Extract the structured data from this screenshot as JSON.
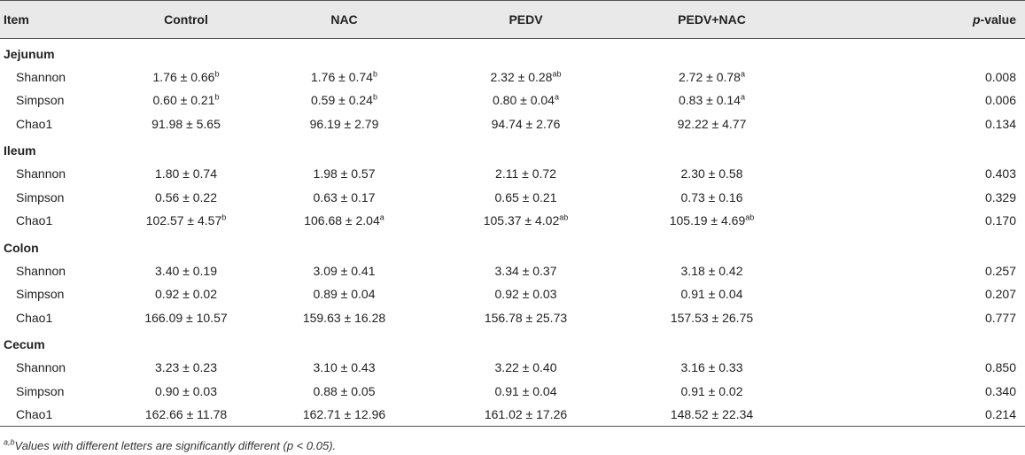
{
  "headers": {
    "item": "Item",
    "control": "Control",
    "nac": "NAC",
    "pedv": "PEDV",
    "pedv_nac": "PEDV+NAC",
    "p_prefix": "p",
    "p_suffix": "-value"
  },
  "sections": [
    {
      "name": "Jejunum",
      "rows": [
        {
          "item": "Shannon",
          "cells": [
            {
              "v": "1.76 ± 0.66",
              "s": "b"
            },
            {
              "v": "1.76 ± 0.74",
              "s": "b"
            },
            {
              "v": "2.32 ± 0.28",
              "s": "ab"
            },
            {
              "v": "2.72 ± 0.78",
              "s": "a"
            }
          ],
          "p": "0.008"
        },
        {
          "item": "Simpson",
          "cells": [
            {
              "v": "0.60 ± 0.21",
              "s": "b"
            },
            {
              "v": "0.59 ± 0.24",
              "s": "b"
            },
            {
              "v": "0.80 ± 0.04",
              "s": "a"
            },
            {
              "v": "0.83 ± 0.14",
              "s": "a"
            }
          ],
          "p": "0.006"
        },
        {
          "item": "Chao1",
          "cells": [
            {
              "v": "91.98 ± 5.65",
              "s": ""
            },
            {
              "v": "96.19 ± 2.79",
              "s": ""
            },
            {
              "v": "94.74 ± 2.76",
              "s": ""
            },
            {
              "v": "92.22 ± 4.77",
              "s": ""
            }
          ],
          "p": "0.134"
        }
      ]
    },
    {
      "name": "Ileum",
      "rows": [
        {
          "item": "Shannon",
          "cells": [
            {
              "v": "1.80 ± 0.74",
              "s": ""
            },
            {
              "v": "1.98 ± 0.57",
              "s": ""
            },
            {
              "v": "2.11 ± 0.72",
              "s": ""
            },
            {
              "v": "2.30 ± 0.58",
              "s": ""
            }
          ],
          "p": "0.403"
        },
        {
          "item": "Simpson",
          "cells": [
            {
              "v": "0.56 ± 0.22",
              "s": ""
            },
            {
              "v": "0.63 ± 0.17",
              "s": ""
            },
            {
              "v": "0.65 ± 0.21",
              "s": ""
            },
            {
              "v": "0.73 ± 0.16",
              "s": ""
            }
          ],
          "p": "0.329"
        },
        {
          "item": "Chao1",
          "cells": [
            {
              "v": "102.57 ± 4.57",
              "s": "b"
            },
            {
              "v": "106.68 ± 2.04",
              "s": "a"
            },
            {
              "v": "105.37 ± 4.02",
              "s": "ab"
            },
            {
              "v": "105.19 ± 4.69",
              "s": "ab"
            }
          ],
          "p": "0.170"
        }
      ]
    },
    {
      "name": "Colon",
      "rows": [
        {
          "item": "Shannon",
          "cells": [
            {
              "v": "3.40 ± 0.19",
              "s": ""
            },
            {
              "v": "3.09 ± 0.41",
              "s": ""
            },
            {
              "v": "3.34 ± 0.37",
              "s": ""
            },
            {
              "v": "3.18 ± 0.42",
              "s": ""
            }
          ],
          "p": "0.257"
        },
        {
          "item": "Simpson",
          "cells": [
            {
              "v": "0.92 ± 0.02",
              "s": ""
            },
            {
              "v": "0.89 ± 0.04",
              "s": ""
            },
            {
              "v": "0.92 ± 0.03",
              "s": ""
            },
            {
              "v": "0.91 ± 0.04",
              "s": ""
            }
          ],
          "p": "0.207"
        },
        {
          "item": "Chao1",
          "cells": [
            {
              "v": "166.09 ± 10.57",
              "s": ""
            },
            {
              "v": "159.63 ± 16.28",
              "s": ""
            },
            {
              "v": "156.78 ± 25.73",
              "s": ""
            },
            {
              "v": "157.53 ± 26.75",
              "s": ""
            }
          ],
          "p": "0.777"
        }
      ]
    },
    {
      "name": "Cecum",
      "rows": [
        {
          "item": "Shannon",
          "cells": [
            {
              "v": "3.23 ± 0.23",
              "s": ""
            },
            {
              "v": "3.10 ± 0.43",
              "s": ""
            },
            {
              "v": "3.22 ± 0.40",
              "s": ""
            },
            {
              "v": "3.16 ± 0.33",
              "s": ""
            }
          ],
          "p": "0.850"
        },
        {
          "item": "Simpson",
          "cells": [
            {
              "v": "0.90 ± 0.03",
              "s": ""
            },
            {
              "v": "0.88 ± 0.05",
              "s": ""
            },
            {
              "v": "0.91 ± 0.04",
              "s": ""
            },
            {
              "v": "0.91 ± 0.02",
              "s": ""
            }
          ],
          "p": "0.340"
        },
        {
          "item": "Chao1",
          "cells": [
            {
              "v": "162.66 ± 11.78",
              "s": ""
            },
            {
              "v": "162.71 ± 12.96",
              "s": ""
            },
            {
              "v": "161.02 ± 17.26",
              "s": ""
            },
            {
              "v": "148.52 ± 22.34",
              "s": ""
            }
          ],
          "p": "0.214"
        }
      ]
    }
  ],
  "footnote": {
    "sup": "a,b",
    "text": "Values with different letters are significantly different (p < 0.05)."
  }
}
